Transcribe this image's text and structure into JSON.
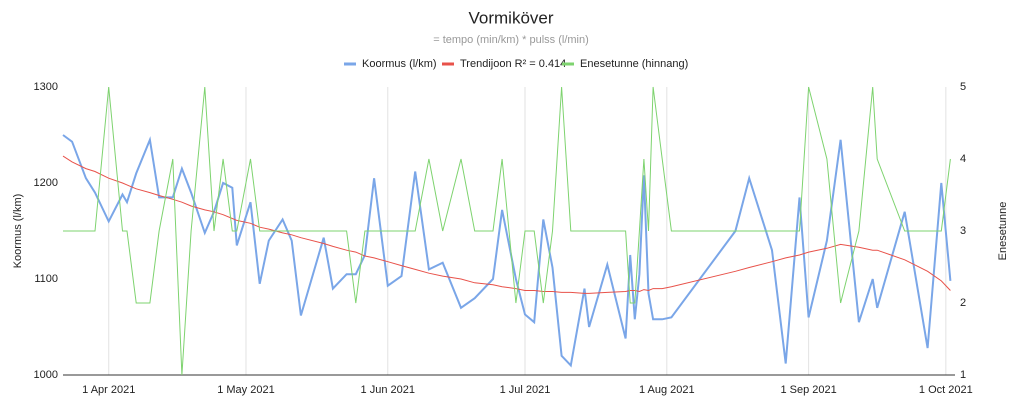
{
  "chart_data": {
    "type": "line",
    "title": "Vormiköver",
    "subtitle": "= tempo (min/km) * pulss (l/min)",
    "y_label": "Koormus (l/km)",
    "y2_label": "Enesetunne",
    "legend": "top",
    "grid": true,
    "x": [
      "2021-03-22",
      "2021-03-24",
      "2021-03-27",
      "2021-03-29",
      "2021-04-01",
      "2021-04-04",
      "2021-04-05",
      "2021-04-07",
      "2021-04-10",
      "2021-04-12",
      "2021-04-15",
      "2021-04-17",
      "2021-04-19",
      "2021-04-22",
      "2021-04-24",
      "2021-04-26",
      "2021-04-28",
      "2021-04-29",
      "2021-05-02",
      "2021-05-04",
      "2021-05-06",
      "2021-05-09",
      "2021-05-11",
      "2021-05-13",
      "2021-05-18",
      "2021-05-20",
      "2021-05-23",
      "2021-05-25",
      "2021-05-27",
      "2021-05-29",
      "2021-06-01",
      "2021-06-04",
      "2021-06-07",
      "2021-06-10",
      "2021-06-13",
      "2021-06-17",
      "2021-06-20",
      "2021-06-24",
      "2021-06-26",
      "2021-06-29",
      "2021-07-01",
      "2021-07-03",
      "2021-07-05",
      "2021-07-07",
      "2021-07-09",
      "2021-07-11",
      "2021-07-14",
      "2021-07-15",
      "2021-07-19",
      "2021-07-23",
      "2021-07-24",
      "2021-07-25",
      "2021-07-26",
      "2021-07-27",
      "2021-07-28",
      "2021-07-29",
      "2021-07-31",
      "2021-08-02",
      "2021-08-16",
      "2021-08-19",
      "2021-08-24",
      "2021-08-27",
      "2021-08-30",
      "2021-09-01",
      "2021-09-05",
      "2021-09-08",
      "2021-09-12",
      "2021-09-15",
      "2021-09-16",
      "2021-09-22",
      "2021-09-27",
      "2021-09-30",
      "2021-10-02"
    ],
    "xlim": [
      "2021-03-22",
      "2021-10-03"
    ],
    "xticks": [
      {
        "value": "2021-04-01",
        "label": "1 Apr 2021"
      },
      {
        "value": "2021-05-01",
        "label": "1 May 2021"
      },
      {
        "value": "2021-06-01",
        "label": "1 Jun 2021"
      },
      {
        "value": "2021-07-01",
        "label": "1 Jul 2021"
      },
      {
        "value": "2021-08-01",
        "label": "1 Aug 2021"
      },
      {
        "value": "2021-09-01",
        "label": "1 Sep 2021"
      },
      {
        "value": "2021-10-01",
        "label": "1 Oct 2021"
      }
    ],
    "ylim": [
      1000,
      1300
    ],
    "yticks": [
      1000,
      1100,
      1200,
      1300
    ],
    "y2lim": [
      1,
      5
    ],
    "y2ticks": [
      1,
      2,
      3,
      4,
      5
    ],
    "series": [
      {
        "name": "Koormus (l/km)",
        "color": "#7aa6e8",
        "values": [
          1250,
          1243,
          1205,
          1190,
          1160,
          1188,
          1180,
          1210,
          1245,
          1185,
          1185,
          1215,
          1190,
          1148,
          1170,
          1200,
          1195,
          1135,
          1180,
          1095,
          1140,
          1162,
          1140,
          1062,
          1143,
          1090,
          1105,
          1105,
          1125,
          1205,
          1093,
          1103,
          1212,
          1110,
          1117,
          1070,
          1080,
          1100,
          1172,
          1100,
          1063,
          1055,
          1162,
          1112,
          1020,
          1010,
          1090,
          1050,
          1115,
          1038,
          1125,
          1058,
          1105,
          1208,
          1085,
          1058,
          1058,
          1060,
          1150,
          1205,
          1130,
          1012,
          1185,
          1060,
          1140,
          1245,
          1055,
          1100,
          1070,
          1170,
          1028,
          1200,
          1098
        ]
      },
      {
        "name": "Trendijoon R² = 0.414",
        "color": "#e8524a",
        "values": [
          1228,
          1222,
          1215,
          1212,
          1205,
          1200,
          1198,
          1194,
          1190,
          1187,
          1183,
          1180,
          1176,
          1172,
          1170,
          1167,
          1163,
          1161,
          1158,
          1154,
          1152,
          1148,
          1146,
          1143,
          1137,
          1134,
          1130,
          1128,
          1124,
          1122,
          1118,
          1114,
          1110,
          1106,
          1103,
          1100,
          1096,
          1094,
          1092,
          1090,
          1088,
          1088,
          1087,
          1087,
          1086,
          1086,
          1085,
          1085,
          1086,
          1087,
          1088,
          1088,
          1087,
          1089,
          1088,
          1090,
          1090,
          1092,
          1108,
          1112,
          1118,
          1122,
          1125,
          1128,
          1132,
          1136,
          1133,
          1130,
          1130,
          1120,
          1108,
          1098,
          1088
        ]
      },
      {
        "name": "Enesetunne (hinnang)",
        "color": "#7ed36f",
        "axis": "y2",
        "values": [
          3,
          3,
          3,
          3,
          5,
          3,
          3,
          2,
          2,
          3,
          4,
          1,
          3,
          5,
          3,
          4,
          3,
          3,
          4,
          3,
          3,
          3,
          3,
          3,
          3,
          3,
          3,
          2,
          3,
          3,
          3,
          3,
          3,
          4,
          3,
          4,
          3,
          3,
          4,
          2,
          3,
          3,
          2,
          3,
          5,
          3,
          3,
          3,
          3,
          3,
          2,
          2,
          3,
          4,
          3,
          5,
          4,
          3,
          3,
          3,
          3,
          3,
          3,
          5,
          4,
          2,
          3,
          5,
          4,
          3,
          3,
          3,
          4
        ]
      }
    ]
  }
}
